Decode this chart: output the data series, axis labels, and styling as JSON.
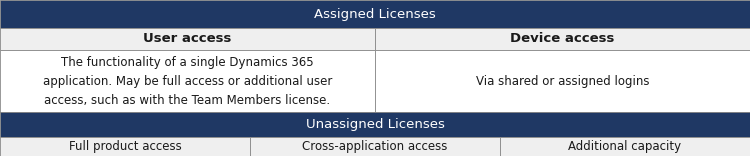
{
  "header_bg": "#1F3864",
  "header_text_color": "#FFFFFF",
  "subheader_bg": "#EFEFEF",
  "cell_bg": "#FFFFFF",
  "cell_text_color": "#1a1a1a",
  "border_color": "#888888",
  "alt_row_bg": "#EFEFEF",
  "assigned_header": "Assigned Licenses",
  "unassigned_header": "Unassigned Licenses",
  "col1_header": "User access",
  "col2_header": "Device access",
  "col1_body": "The functionality of a single Dynamics 365\napplication. May be full access or additional user\naccess, such as with the Team Members license.",
  "col2_body": "Via shared or assigned logins",
  "bottom_col1": "Full product access",
  "bottom_col2": "Cross-application access",
  "bottom_col3": "Additional capacity",
  "header_fontsize": 9.5,
  "subheader_fontsize": 9.5,
  "body_fontsize": 8.5,
  "figwidth": 7.5,
  "figheight": 1.56,
  "dpi": 100,
  "row_tops": [
    1.0,
    0.82,
    0.68,
    0.28,
    0.12
  ],
  "row_bottoms": [
    0.82,
    0.68,
    0.28,
    0.12,
    0.0
  ]
}
